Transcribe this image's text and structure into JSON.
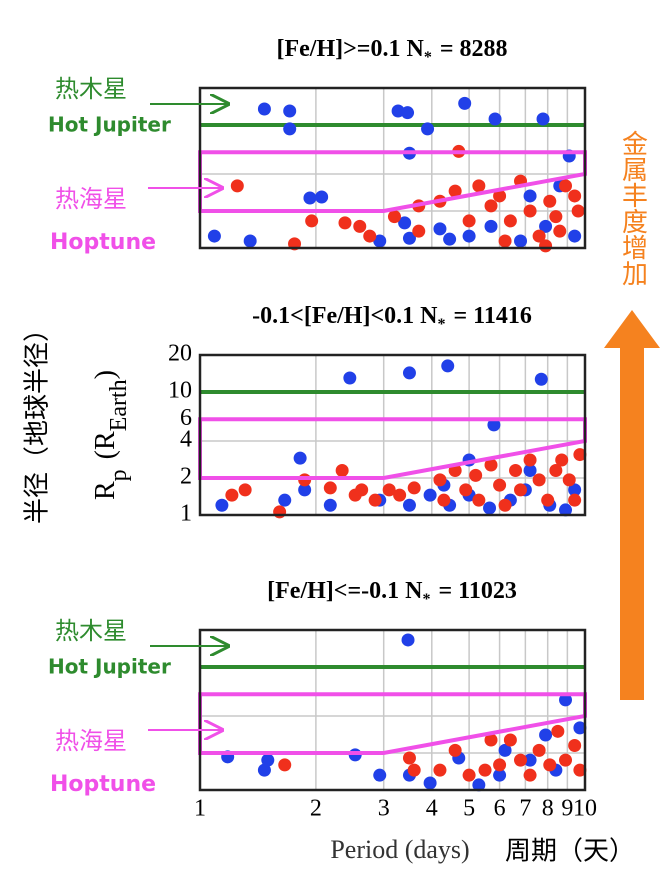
{
  "chart_data": [
    {
      "type": "scatter",
      "title_parts": [
        "[Fe/H]>=0.1 N",
        "*",
        "= 8288"
      ],
      "xscale": "log",
      "yscale": "log",
      "xlim": [
        1,
        10
      ],
      "ylim": [
        1,
        20
      ],
      "xticks": [
        1,
        2,
        3,
        4,
        5,
        6,
        7,
        8,
        9,
        10
      ],
      "yticks": [
        1,
        2,
        4,
        6,
        10,
        20
      ],
      "grid": true,
      "show_xtick_labels": false,
      "show_ytick_labels": false,
      "hot_jupiter_radius": 10,
      "hot_jupiter_color": "#2e8b2e",
      "hoptune_region": {
        "x": [
          1,
          3,
          10
        ],
        "lower": [
          2,
          2,
          4
        ],
        "upper": 6,
        "color": "#f050e8"
      },
      "annotations": [
        "热木星",
        "Hot Jupiter",
        "热海星",
        "Hoptune"
      ],
      "series": [
        {
          "color": "#2140e8",
          "x": [
            1.47,
            1.71,
            1.71,
            3.27,
            3.46,
            4.87,
            5.84,
            7.78,
            3.9,
            1.09,
            1.35,
            1.93,
            2.07,
            3.5,
            3.5,
            4.2,
            5.0,
            6.8,
            9.1,
            3.4,
            4.45,
            5.7,
            7.9,
            9.4,
            8.6,
            2.93,
            7.2
          ],
          "y": [
            13.5,
            13,
            9.3,
            13,
            12.6,
            15,
            11.2,
            11.2,
            9.3,
            1.25,
            1.14,
            2.55,
            2.6,
            5.9,
            1.2,
            1.43,
            1.25,
            1.14,
            5.6,
            1.6,
            1.18,
            1.5,
            1.5,
            1.25,
            3.2,
            1.14,
            2.65
          ]
        },
        {
          "color": "#f0301c",
          "x": [
            1.25,
            1.76,
            1.95,
            2.38,
            2.6,
            2.76,
            3.2,
            3.7,
            4.2,
            4.6,
            4.7,
            5.3,
            5.7,
            6.0,
            6.4,
            6.8,
            7.2,
            7.6,
            8.1,
            8.4,
            8.9,
            9.4,
            9.6,
            3.7,
            5.0,
            6.2,
            7.9,
            8.6
          ],
          "y": [
            3.2,
            1.08,
            1.66,
            1.6,
            1.5,
            1.25,
            1.8,
            2.2,
            2.4,
            2.9,
            6.1,
            3.2,
            2.2,
            2.65,
            1.66,
            3.5,
            2.0,
            1.25,
            2.4,
            1.8,
            3.2,
            2.65,
            2.0,
            1.37,
            1.66,
            1.14,
            1.04,
            1.37
          ]
        }
      ]
    },
    {
      "type": "scatter",
      "title_parts": [
        "-0.1<[Fe/H]<0.1 N",
        "*",
        "= 11416"
      ],
      "ylabel_parts": [
        "R",
        "p",
        "(R",
        "Earth",
        ")"
      ],
      "xscale": "log",
      "yscale": "log",
      "xlim": [
        1,
        10
      ],
      "ylim": [
        1,
        20
      ],
      "xticks": [
        1,
        2,
        3,
        4,
        5,
        6,
        7,
        8,
        9,
        10
      ],
      "yticks": [
        1,
        2,
        4,
        6,
        10,
        20
      ],
      "grid": true,
      "show_xtick_labels": false,
      "show_ytick_labels": true,
      "hot_jupiter_radius": 10,
      "hot_jupiter_color": "#2e8b2e",
      "hoptune_region": {
        "x": [
          1,
          3,
          10
        ],
        "lower": [
          2,
          2,
          4
        ],
        "upper": 6,
        "color": "#f050e8"
      },
      "series": [
        {
          "color": "#2140e8",
          "x": [
            2.45,
            3.5,
            4.4,
            7.7,
            5.8,
            1.82,
            1.14,
            1.66,
            1.87,
            2.18,
            2.93,
            3.5,
            3.96,
            4.45,
            5.0,
            5.65,
            6.4,
            7.0,
            8.1,
            8.9,
            9.4,
            4.3,
            5.0,
            7.2
          ],
          "y": [
            13,
            14.3,
            16.3,
            12.7,
            5.4,
            2.9,
            1.2,
            1.32,
            1.6,
            1.2,
            1.32,
            1.2,
            1.45,
            1.2,
            1.45,
            1.14,
            1.32,
            1.6,
            1.2,
            1.1,
            1.6,
            1.75,
            2.8,
            2.3
          ]
        },
        {
          "color": "#f0301c",
          "x": [
            1.21,
            1.31,
            1.61,
            1.87,
            2.18,
            2.34,
            2.53,
            2.63,
            2.85,
            3.1,
            3.3,
            3.6,
            4.2,
            4.3,
            4.6,
            4.9,
            5.2,
            5.3,
            5.7,
            6.0,
            6.2,
            6.6,
            6.8,
            7.2,
            7.6,
            8.0,
            8.4,
            8.7,
            9.1,
            9.4,
            9.7
          ],
          "y": [
            1.45,
            1.6,
            1.06,
            1.93,
            1.66,
            2.3,
            1.45,
            1.6,
            1.32,
            1.6,
            1.45,
            1.66,
            1.93,
            1.32,
            2.3,
            1.6,
            2.1,
            1.32,
            2.55,
            1.75,
            1.2,
            2.3,
            1.6,
            2.8,
            1.93,
            1.32,
            2.3,
            2.8,
            1.93,
            1.32,
            3.1
          ]
        }
      ]
    },
    {
      "type": "scatter",
      "title_parts": [
        "[Fe/H]<=-0.1 N",
        "*",
        "= 11023"
      ],
      "xlabel": "Period (days)",
      "xscale": "log",
      "yscale": "log",
      "xlim": [
        1,
        10
      ],
      "ylim": [
        1,
        20
      ],
      "xticks": [
        1,
        2,
        3,
        4,
        5,
        6,
        7,
        8,
        9,
        10
      ],
      "yticks": [
        1,
        2,
        4,
        6,
        10,
        20
      ],
      "grid": true,
      "show_xtick_labels": true,
      "show_ytick_labels": false,
      "hot_jupiter_radius": 10,
      "hot_jupiter_color": "#2e8b2e",
      "hoptune_region": {
        "x": [
          1,
          3,
          10
        ],
        "lower": [
          2,
          2,
          4
        ],
        "upper": 6,
        "color": "#f050e8"
      },
      "annotations": [
        "热木星",
        "Hot Jupiter",
        "热海星",
        "Hoptune"
      ],
      "series": [
        {
          "color": "#2140e8",
          "x": [
            3.47,
            1.18,
            1.47,
            1.5,
            2.53,
            2.93,
            3.5,
            3.96,
            4.7,
            5.3,
            6.2,
            7.2,
            7.9,
            8.9,
            9.7,
            6.0,
            8.4
          ],
          "y": [
            16.6,
            1.86,
            1.45,
            1.75,
            1.93,
            1.32,
            1.32,
            1.14,
            1.82,
            1.1,
            2.1,
            1.75,
            2.8,
            5.4,
            3.2,
            1.32,
            1.45
          ]
        },
        {
          "color": "#f0301c",
          "x": [
            1.66,
            3.5,
            3.6,
            4.2,
            4.6,
            5.0,
            5.5,
            5.7,
            6.0,
            6.4,
            6.8,
            7.2,
            7.6,
            8.1,
            8.5,
            8.9,
            9.4,
            9.7
          ],
          "y": [
            1.6,
            1.82,
            1.45,
            1.45,
            2.1,
            1.32,
            1.45,
            2.55,
            1.6,
            2.55,
            1.75,
            1.32,
            2.1,
            1.6,
            3.0,
            1.75,
            2.3,
            1.45
          ]
        }
      ]
    }
  ],
  "labels": {
    "y_cn": "半径（地球半径）",
    "x_cn": "周期（天）",
    "metallicity": "金属丰度增加"
  }
}
